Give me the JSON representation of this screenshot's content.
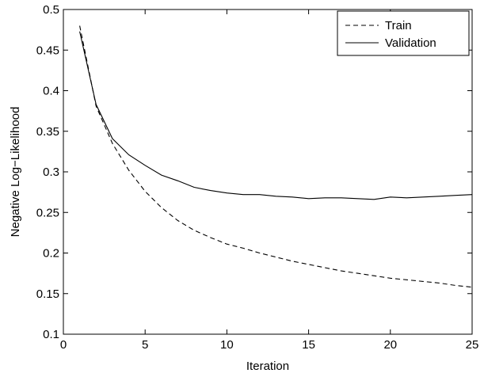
{
  "chart_data": {
    "type": "line",
    "title": "",
    "xlabel": "Iteration",
    "ylabel": "Negative Log−Likelihood",
    "xlim": [
      0,
      25
    ],
    "ylim": [
      0.1,
      0.5
    ],
    "xticks": [
      0,
      5,
      10,
      15,
      20,
      25
    ],
    "yticks": [
      0.1,
      0.15,
      0.2,
      0.25,
      0.3,
      0.35,
      0.4,
      0.45,
      0.5
    ],
    "xtick_labels": [
      "0",
      "5",
      "10",
      "15",
      "20",
      "25"
    ],
    "ytick_labels": [
      "0.1",
      "0.15",
      "0.2",
      "0.25",
      "0.3",
      "0.35",
      "0.4",
      "0.45",
      "0.5"
    ],
    "grid": false,
    "legend_position": "top-right",
    "series": [
      {
        "name": "Train",
        "style": "dashed",
        "color": "#000000",
        "x": [
          1,
          2,
          3,
          4,
          5,
          6,
          7,
          8,
          9,
          10,
          11,
          12,
          13,
          14,
          15,
          16,
          17,
          18,
          19,
          20,
          21,
          22,
          23,
          24,
          25
        ],
        "y": [
          0.48,
          0.381,
          0.335,
          0.302,
          0.276,
          0.256,
          0.24,
          0.228,
          0.219,
          0.211,
          0.206,
          0.2,
          0.195,
          0.19,
          0.186,
          0.182,
          0.178,
          0.175,
          0.172,
          0.169,
          0.167,
          0.165,
          0.163,
          0.16,
          0.158
        ]
      },
      {
        "name": "Validation",
        "style": "solid",
        "color": "#000000",
        "x": [
          1,
          2,
          3,
          4,
          5,
          6,
          7,
          8,
          9,
          10,
          11,
          12,
          13,
          14,
          15,
          16,
          17,
          18,
          19,
          20,
          21,
          22,
          23,
          24,
          25
        ],
        "y": [
          0.473,
          0.383,
          0.341,
          0.321,
          0.308,
          0.296,
          0.289,
          0.281,
          0.277,
          0.274,
          0.272,
          0.272,
          0.27,
          0.269,
          0.267,
          0.268,
          0.268,
          0.267,
          0.266,
          0.269,
          0.268,
          0.269,
          0.27,
          0.271,
          0.272
        ]
      }
    ]
  }
}
